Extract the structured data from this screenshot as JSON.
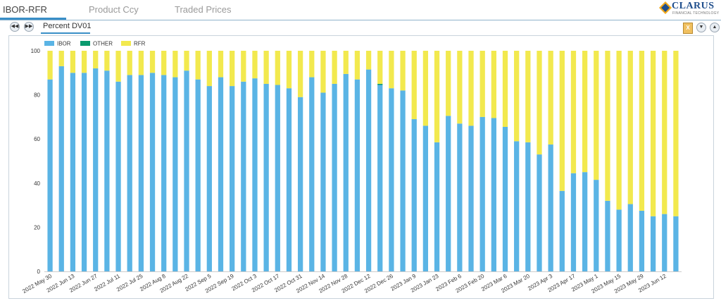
{
  "tabs": [
    {
      "label": "IBOR-RFR",
      "active": true
    },
    {
      "label": "Product Ccy",
      "active": false
    },
    {
      "label": "Traded Prices",
      "active": false
    }
  ],
  "logo": {
    "name": "CLARUS",
    "tagline": "FINANCIAL TECHNOLOGY"
  },
  "toolbar": {
    "prev_icon": "rewind-icon",
    "next_icon": "fast-forward-icon",
    "subtab_label": "Percent DV01",
    "export_icon": "excel-export-icon",
    "collapse_icon": "collapse-icon",
    "expand_icon": "expand-icon"
  },
  "colors": {
    "IBOR": "#5ab4e5",
    "OTHER": "#0a9a6e",
    "RFR": "#f2e94e",
    "accent": "#3a8fc7"
  },
  "chart_data": {
    "type": "bar",
    "stacked": true,
    "title": "",
    "xlabel": "",
    "ylabel": "",
    "ylim": [
      0,
      100
    ],
    "yticks": [
      0,
      20,
      40,
      60,
      80,
      100
    ],
    "legend": [
      "IBOR",
      "OTHER",
      "RFR"
    ],
    "legend_position": "top-left",
    "x_tick_labels": [
      "2022 May 30",
      "2022 Jun 13",
      "2022 Jun 27",
      "2022 Jul 11",
      "2022 Jul 25",
      "2022 Aug 8",
      "2022 Aug 22",
      "2022 Sep 5",
      "2022 Sep 19",
      "2022 Oct 3",
      "2022 Oct 17",
      "2022 Oct 31",
      "2022 Nov 14",
      "2022 Nov 28",
      "2022 Dec 12",
      "2022 Dec 26",
      "2023 Jan 9",
      "2023 Jan 23",
      "2023 Feb 6",
      "2023 Feb 20",
      "2023 Mar 6",
      "2023 Mar 20",
      "2023 Apr 3",
      "2023 Apr 17",
      "2023 May 1",
      "2023 May 15",
      "2023 May 29",
      "2023 Jun 12"
    ],
    "series": [
      {
        "name": "IBOR",
        "values": [
          87,
          93,
          90,
          90,
          92,
          91,
          86,
          89,
          89,
          90,
          89,
          88,
          91,
          87,
          84,
          88,
          84,
          86,
          87.5,
          85,
          84.5,
          83,
          79,
          88,
          81,
          85,
          89.5,
          87,
          91.5,
          84.5,
          83,
          82,
          69,
          66,
          58.5,
          70.5,
          67,
          66,
          70,
          69.5,
          65.5,
          59,
          58.5,
          53,
          57.5,
          36.5,
          44.5,
          45,
          41.5,
          32,
          28,
          30.5,
          27.5,
          25,
          26,
          25
        ]
      },
      {
        "name": "OTHER",
        "values": [
          0,
          0,
          0,
          0,
          0,
          0,
          0,
          0,
          0,
          0,
          0,
          0,
          0,
          0,
          0,
          0,
          0,
          0,
          0,
          0,
          0,
          0,
          0,
          0,
          0,
          0,
          0,
          0,
          0,
          0.5,
          0,
          0,
          0,
          0,
          0,
          0,
          0,
          0,
          0,
          0,
          0,
          0,
          0,
          0,
          0,
          0,
          0,
          0,
          0,
          0,
          0,
          0,
          0,
          0,
          0,
          0
        ]
      },
      {
        "name": "RFR",
        "values": [
          13,
          7,
          10,
          10,
          8,
          9,
          14,
          11,
          11,
          10,
          11,
          12,
          9,
          13,
          16,
          12,
          16,
          14,
          12.5,
          15,
          15.5,
          17,
          21,
          12,
          19,
          15,
          10.5,
          13,
          8.5,
          15,
          17,
          18,
          31,
          34,
          41.5,
          29.5,
          33,
          34,
          30,
          30.5,
          34.5,
          41,
          41.5,
          47,
          42.5,
          63.5,
          55.5,
          55,
          58.5,
          68,
          72,
          69.5,
          72.5,
          75,
          74,
          75
        ]
      }
    ]
  }
}
